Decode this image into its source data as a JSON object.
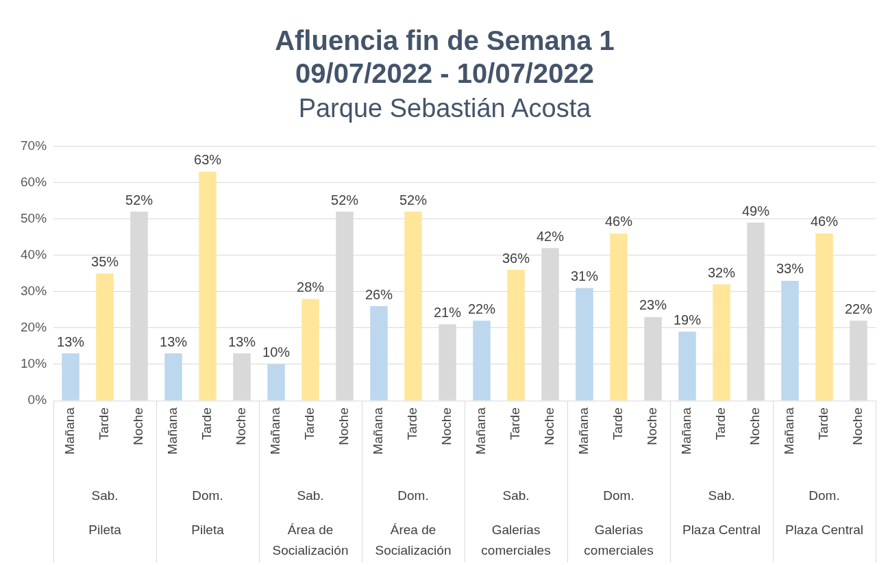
{
  "chart_data": {
    "type": "bar",
    "title": "Afluencia fin de Semana 1\n09/07/2022 - 10/07/2022",
    "subtitle": "Parque Sebastián Acosta",
    "categories": [
      "Sab. Pileta",
      "Dom. Pileta",
      "Sab. Área de Socialización",
      "Dom. Área de Socialización",
      "Sab. Galerias comerciales",
      "Dom. Galerias comerciales",
      "Sab. Plaza Central",
      "Dom. Plaza Central"
    ],
    "series": [
      {
        "name": "Mañana",
        "color": "#bdd7ee",
        "values": [
          13,
          13,
          10,
          26,
          22,
          31,
          19,
          33
        ],
        "value_labels": [
          "13%",
          "13%",
          "10%",
          "26%",
          "22%",
          "31%",
          "19%",
          "33%"
        ]
      },
      {
        "name": "Tarde",
        "color": "#ffe699",
        "values": [
          35,
          63,
          28,
          52,
          36,
          46,
          32,
          46
        ],
        "value_labels": [
          "35%",
          "63%",
          "28%",
          "52%",
          "36%",
          "46%",
          "32%",
          "46%"
        ]
      },
      {
        "name": "Noche",
        "color": "#d9d9d9",
        "values": [
          52,
          13,
          52,
          21,
          42,
          23,
          49,
          22
        ],
        "value_labels": [
          "52%",
          "13%",
          "52%",
          "21%",
          "42%",
          "23%",
          "49%",
          "22%"
        ]
      }
    ],
    "ylim": [
      0,
      70
    ],
    "yticks": [
      {
        "value": 0,
        "label": "0%"
      },
      {
        "value": 10,
        "label": "10%"
      },
      {
        "value": 20,
        "label": "20%"
      },
      {
        "value": 30,
        "label": "30%"
      },
      {
        "value": 40,
        "label": "40%"
      },
      {
        "value": 50,
        "label": "50%"
      },
      {
        "value": 60,
        "label": "60%"
      },
      {
        "value": 70,
        "label": "70%"
      }
    ],
    "grid": "y",
    "legend": false
  }
}
